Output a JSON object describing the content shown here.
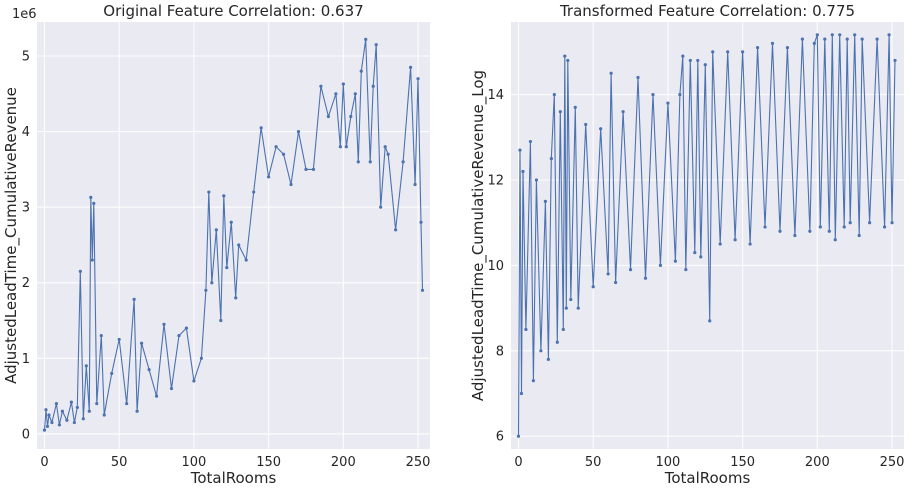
{
  "colors": {
    "series": "#4c72b0",
    "panel_bg": "#eaeaf2",
    "grid": "#ffffff",
    "text": "#262626"
  },
  "chart_data": [
    {
      "type": "line",
      "title": "Original Feature Correlation: 0.637",
      "xlabel": "TotalRooms",
      "ylabel": "AdjustedLeadTime_CumulativeRevenue",
      "y_offset_label": "1e6",
      "xlim": [
        -5,
        258
      ],
      "ylim": [
        -200000,
        5450000
      ],
      "xticks": [
        0,
        50,
        100,
        150,
        200,
        250
      ],
      "xtick_labels": [
        "0",
        "50",
        "100",
        "150",
        "200",
        "250"
      ],
      "yticks": [
        0,
        1000000,
        2000000,
        3000000,
        4000000,
        5000000
      ],
      "ytick_labels": [
        "0",
        "1",
        "2",
        "3",
        "4",
        "5"
      ],
      "grid": true,
      "markers": true,
      "series": [
        {
          "x": [
            0,
            1,
            2,
            3,
            5,
            8,
            10,
            12,
            15,
            18,
            20,
            22,
            24,
            26,
            28,
            30,
            31,
            32,
            33,
            35,
            38,
            40,
            45,
            50,
            55,
            60,
            62,
            65,
            70,
            75,
            80,
            85,
            90,
            95,
            100,
            105,
            108,
            110,
            112,
            115,
            118,
            120,
            122,
            125,
            128,
            130,
            135,
            140,
            145,
            150,
            155,
            160,
            165,
            170,
            175,
            180,
            185,
            190,
            195,
            198,
            200,
            202,
            205,
            208,
            210,
            212,
            215,
            218,
            220,
            222,
            225,
            228,
            230,
            235,
            240,
            245,
            248,
            250,
            252,
            253
          ],
          "y": [
            50000,
            320000,
            100000,
            250000,
            150000,
            400000,
            120000,
            300000,
            180000,
            420000,
            150000,
            350000,
            2150000,
            200000,
            900000,
            300000,
            3130000,
            2300000,
            3050000,
            400000,
            1300000,
            250000,
            800000,
            1250000,
            400000,
            1780000,
            300000,
            1200000,
            850000,
            500000,
            1450000,
            600000,
            1300000,
            1400000,
            700000,
            1000000,
            1900000,
            3200000,
            2000000,
            2700000,
            1500000,
            3150000,
            2200000,
            2800000,
            1800000,
            2500000,
            2300000,
            3200000,
            4050000,
            3400000,
            3800000,
            3700000,
            3300000,
            4000000,
            3500000,
            3500000,
            4600000,
            4200000,
            4500000,
            3800000,
            4630000,
            3800000,
            4200000,
            4500000,
            3600000,
            4800000,
            5220000,
            3600000,
            4600000,
            5150000,
            3000000,
            3800000,
            3700000,
            2700000,
            3600000,
            4850000,
            3300000,
            4700000,
            2800000,
            1900000
          ]
        }
      ]
    },
    {
      "type": "line",
      "title": "Transformed Feature Correlation: 0.775",
      "xlabel": "TotalRooms",
      "ylabel": "AdjustedLeadTime_CumulativeRevenue_Log",
      "xlim": [
        -5,
        258
      ],
      "ylim": [
        5.7,
        15.7
      ],
      "xticks": [
        0,
        50,
        100,
        150,
        200,
        250
      ],
      "xtick_labels": [
        "0",
        "50",
        "100",
        "150",
        "200",
        "250"
      ],
      "yticks": [
        6,
        8,
        10,
        12,
        14
      ],
      "ytick_labels": [
        "6",
        "8",
        "10",
        "12",
        "14"
      ],
      "grid": true,
      "markers": true,
      "series": [
        {
          "x": [
            0,
            1,
            2,
            3,
            5,
            8,
            10,
            12,
            15,
            18,
            20,
            22,
            24,
            26,
            28,
            30,
            31,
            32,
            33,
            35,
            38,
            40,
            45,
            50,
            55,
            60,
            62,
            65,
            70,
            75,
            80,
            85,
            90,
            95,
            100,
            105,
            108,
            110,
            112,
            115,
            118,
            120,
            122,
            125,
            128,
            130,
            135,
            140,
            145,
            150,
            155,
            160,
            165,
            170,
            175,
            180,
            185,
            190,
            195,
            198,
            200,
            202,
            205,
            208,
            210,
            212,
            215,
            218,
            220,
            222,
            225,
            228,
            230,
            235,
            240,
            245,
            248,
            250,
            252
          ],
          "y": [
            6.0,
            12.7,
            7.0,
            12.2,
            8.5,
            12.9,
            7.3,
            12.0,
            8.0,
            11.5,
            7.8,
            12.5,
            14.0,
            8.2,
            13.6,
            8.5,
            14.9,
            9.0,
            14.8,
            9.2,
            13.7,
            9.0,
            13.3,
            9.5,
            13.2,
            9.8,
            14.5,
            9.6,
            13.6,
            9.9,
            14.4,
            9.7,
            14.0,
            10.0,
            13.8,
            10.1,
            14.0,
            14.9,
            9.9,
            14.8,
            10.3,
            14.8,
            10.2,
            14.7,
            8.7,
            15.0,
            10.5,
            15.0,
            10.6,
            15.0,
            10.5,
            15.1,
            10.9,
            15.2,
            10.8,
            15.1,
            10.7,
            15.3,
            10.8,
            15.2,
            15.4,
            10.9,
            15.3,
            10.8,
            15.4,
            10.6,
            15.4,
            10.9,
            15.3,
            11.0,
            15.4,
            10.7,
            15.3,
            11.0,
            15.3,
            10.9,
            15.4,
            11.0,
            14.8
          ]
        }
      ]
    }
  ]
}
